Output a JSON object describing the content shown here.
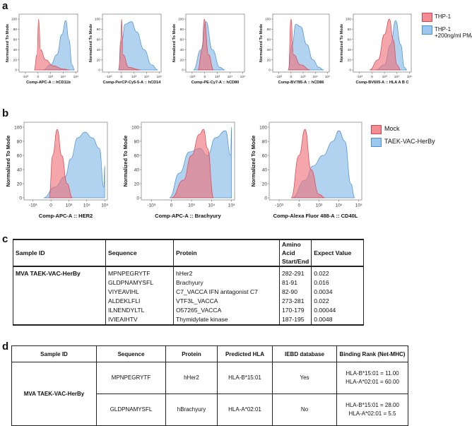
{
  "panels": {
    "a": "a",
    "b": "b",
    "c": "c",
    "d": "d"
  },
  "colors": {
    "red_fill": "#ee6f78",
    "red_stroke": "#d9434f",
    "blue_fill": "#7eb5e6",
    "blue_stroke": "#4b90d2"
  },
  "legend_a": {
    "items": [
      "THP-1",
      "THP-1",
      "+200ng/ml PMA"
    ]
  },
  "legend_b": {
    "items": [
      "Mock",
      "TAEK-VAC-HerBy"
    ]
  },
  "chart_data": [
    {
      "type": "area",
      "panel": "a",
      "title": "",
      "xlabel": "Comp-APC-A :: hCD11b",
      "ylabel": "Normalized To Mode",
      "ylim": [
        0,
        100
      ],
      "yticks": [
        "0",
        "20",
        "40",
        "60",
        "80",
        "100"
      ],
      "xticks": [
        "-10³",
        "0",
        "10³",
        "10⁴",
        "10⁵"
      ],
      "x_scale": "biexponential display units (-1=-10³, 0=0, 1=10³, 2=10⁴, 3=10⁵)",
      "series": [
        {
          "name": "THP-1",
          "color": "red",
          "points": [
            [
              -0.3,
              0
            ],
            [
              -0.08,
              30
            ],
            [
              0.05,
              100
            ],
            [
              0.2,
              40
            ],
            [
              0.6,
              20
            ],
            [
              1.2,
              8
            ],
            [
              2,
              2
            ],
            [
              2.5,
              0
            ]
          ]
        },
        {
          "name": "THP-1 +200ng/ml PMA",
          "color": "blue",
          "points": [
            [
              0.4,
              0
            ],
            [
              1,
              10
            ],
            [
              1.5,
              30
            ],
            [
              1.9,
              70
            ],
            [
              2.2,
              97
            ],
            [
              2.45,
              60
            ],
            [
              2.7,
              10
            ],
            [
              2.9,
              0
            ]
          ]
        }
      ]
    },
    {
      "type": "area",
      "panel": "a",
      "xlabel": "Comp-PerCP-Cy5-5-A :: hCD14",
      "ylabel": "Normalized To Mode",
      "ylim": [
        0,
        100
      ],
      "yticks": [
        "0",
        "20",
        "40",
        "60",
        "80",
        "100"
      ],
      "xticks": [
        "-10³",
        "0",
        "10³",
        "10⁴",
        "10⁵"
      ],
      "series": [
        {
          "name": "THP-1",
          "color": "red",
          "points": [
            [
              -0.2,
              0
            ],
            [
              -0.05,
              60
            ],
            [
              0.02,
              100
            ],
            [
              0.12,
              30
            ],
            [
              0.6,
              5
            ],
            [
              1.5,
              0
            ]
          ]
        },
        {
          "name": "THP-1 +200ng/ml PMA",
          "color": "blue",
          "points": [
            [
              -0.25,
              0
            ],
            [
              0.05,
              60
            ],
            [
              0.3,
              90
            ],
            [
              0.8,
              95
            ],
            [
              1.2,
              75
            ],
            [
              1.8,
              40
            ],
            [
              2.4,
              10
            ],
            [
              2.9,
              0
            ]
          ]
        }
      ]
    },
    {
      "type": "area",
      "panel": "a",
      "xlabel": "Comp-PE-Cy7-A :: hCD80",
      "ylabel": "Normalized To Mode",
      "ylim": [
        0,
        100
      ],
      "yticks": [
        "0",
        "20",
        "40",
        "60",
        "80",
        "100"
      ],
      "xticks": [
        "-10³",
        "0",
        "10³",
        "10⁴",
        "10⁵"
      ],
      "series": [
        {
          "name": "THP-1",
          "color": "red",
          "points": [
            [
              -0.55,
              0
            ],
            [
              -0.2,
              40
            ],
            [
              -0.05,
              100
            ],
            [
              0.3,
              30
            ],
            [
              0.7,
              0
            ]
          ]
        },
        {
          "name": "THP-1 +200ng/ml PMA",
          "color": "blue",
          "points": [
            [
              -0.9,
              0
            ],
            [
              -0.3,
              40
            ],
            [
              0.1,
              95
            ],
            [
              0.6,
              40
            ],
            [
              1.2,
              5
            ],
            [
              1.6,
              0
            ]
          ]
        }
      ]
    },
    {
      "type": "area",
      "panel": "a",
      "xlabel": "Comp-BV785-A :: hCD86",
      "ylabel": "Normalized To Mode",
      "ylim": [
        0,
        100
      ],
      "yticks": [
        "0",
        "20",
        "40",
        "60",
        "80",
        "100"
      ],
      "xticks": [
        "-10³",
        "0",
        "10³",
        "10⁴",
        "10⁵"
      ],
      "series": [
        {
          "name": "THP-1",
          "color": "red",
          "points": [
            [
              -0.2,
              0
            ],
            [
              0,
              100
            ],
            [
              0.2,
              30
            ],
            [
              0.8,
              10
            ],
            [
              1.6,
              0
            ]
          ]
        },
        {
          "name": "THP-1 +200ng/ml PMA",
          "color": "blue",
          "points": [
            [
              -0.25,
              0
            ],
            [
              0.1,
              50
            ],
            [
              0.4,
              90
            ],
            [
              0.8,
              85
            ],
            [
              1.3,
              50
            ],
            [
              1.8,
              20
            ],
            [
              2.3,
              5
            ],
            [
              2.7,
              0
            ]
          ]
        }
      ]
    },
    {
      "type": "area",
      "panel": "a",
      "xlabel": "Comp-BV605-A :: HLA A B C",
      "ylabel": "Normalized To Mode",
      "ylim": [
        0,
        100
      ],
      "yticks": [
        "0",
        "20",
        "40",
        "60",
        "80",
        "100"
      ],
      "xticks": [
        "-10³",
        "0",
        "10³",
        "10⁴",
        "10⁵"
      ],
      "series": [
        {
          "name": "THP-1",
          "color": "red",
          "points": [
            [
              -0.2,
              0
            ],
            [
              0.5,
              20
            ],
            [
              1.0,
              70
            ],
            [
              1.4,
              100
            ],
            [
              1.7,
              60
            ],
            [
              2.0,
              10
            ],
            [
              2.3,
              0
            ]
          ]
        },
        {
          "name": "THP-1 +200ng/ml PMA",
          "color": "blue",
          "points": [
            [
              0.3,
              0
            ],
            [
              1,
              10
            ],
            [
              1.5,
              50
            ],
            [
              1.9,
              97
            ],
            [
              2.3,
              50
            ],
            [
              2.6,
              5
            ],
            [
              2.8,
              0
            ]
          ]
        }
      ]
    },
    {
      "type": "area",
      "panel": "b",
      "xlabel": "Comp-APC-A :: HER2",
      "ylabel": "Normalized To Mode",
      "ylim": [
        0,
        100
      ],
      "yticks": [
        "0",
        "20",
        "40",
        "60",
        "80",
        "100"
      ],
      "xticks": [
        "-10³",
        "0",
        "10³",
        "10⁴",
        "10⁵"
      ],
      "series": [
        {
          "name": "Mock",
          "color": "red",
          "points": [
            [
              -0.1,
              0
            ],
            [
              0.1,
              60
            ],
            [
              0.35,
              97
            ],
            [
              0.6,
              60
            ],
            [
              0.9,
              20
            ],
            [
              1.2,
              0
            ]
          ]
        },
        {
          "name": "TAEK-VAC-HerBy",
          "color": "blue",
          "points": [
            [
              -0.4,
              0
            ],
            [
              0.2,
              15
            ],
            [
              0.8,
              30
            ],
            [
              1.1,
              55
            ],
            [
              1.5,
              85
            ],
            [
              1.9,
              93
            ],
            [
              2.3,
              85
            ],
            [
              2.7,
              70
            ],
            [
              2.95,
              15
            ],
            [
              3.0,
              45
            ],
            [
              3.0,
              0
            ]
          ]
        }
      ]
    },
    {
      "type": "area",
      "panel": "b",
      "xlabel": "Comp-APC-A :: Brachyury",
      "ylabel": "Normalized To Mode",
      "ylim": [
        0,
        100
      ],
      "yticks": [
        "0",
        "20",
        "40",
        "60",
        "80",
        "100"
      ],
      "xticks": [
        "-10³",
        "0",
        "10³",
        "10⁴",
        "10⁵"
      ],
      "series": [
        {
          "name": "Mock",
          "color": "red",
          "points": [
            [
              0,
              0
            ],
            [
              0.6,
              25
            ],
            [
              1.0,
              60
            ],
            [
              1.4,
              90
            ],
            [
              1.6,
              97
            ],
            [
              1.8,
              70
            ],
            [
              2.1,
              0
            ]
          ]
        },
        {
          "name": "TAEK-VAC-HerBy",
          "color": "blue",
          "points": [
            [
              -0.1,
              0
            ],
            [
              0.4,
              35
            ],
            [
              0.9,
              65
            ],
            [
              1.4,
              70
            ],
            [
              1.8,
              60
            ],
            [
              2.2,
              85
            ],
            [
              2.7,
              95
            ],
            [
              2.95,
              60
            ],
            [
              3.0,
              100
            ],
            [
              3.0,
              0
            ]
          ]
        }
      ]
    },
    {
      "type": "area",
      "panel": "b",
      "xlabel": "Comp-Alexa Fluor 488-A :: CD40L",
      "ylabel": "Normalized To Mode",
      "ylim": [
        0,
        100
      ],
      "yticks": [
        "0",
        "20",
        "40",
        "60",
        "80",
        "100"
      ],
      "xticks": [
        "-10³",
        "0",
        "10³",
        "10⁴",
        "10⁵"
      ],
      "series": [
        {
          "name": "Mock",
          "color": "red",
          "points": [
            [
              -0.4,
              0
            ],
            [
              0,
              60
            ],
            [
              0.3,
              97
            ],
            [
              0.6,
              40
            ],
            [
              1,
              5
            ],
            [
              1.3,
              0
            ]
          ]
        },
        {
          "name": "TAEK-VAC-HerBy",
          "color": "blue",
          "points": [
            [
              -0.35,
              0
            ],
            [
              0.3,
              25
            ],
            [
              0.7,
              45
            ],
            [
              1.2,
              60
            ],
            [
              1.7,
              80
            ],
            [
              2.0,
              95
            ],
            [
              2.3,
              80
            ],
            [
              2.6,
              20
            ],
            [
              2.8,
              0
            ]
          ]
        }
      ]
    }
  ],
  "table_c": {
    "headers": [
      "Sample ID",
      "Sequence",
      "Protein",
      "Amino Acid Start/End",
      "Expect Value"
    ],
    "sample_id": "MVA TAEK-VAC-HerBy",
    "rows": [
      [
        "MPNPEGRYTF",
        "hHer2",
        "282-291",
        "0.022"
      ],
      [
        "GLDPNAMYSFL",
        "Brachyury",
        "81-91",
        "0.016"
      ],
      [
        "VIYEAVIHL",
        "C7_VACCA IFN antagonist C7",
        "82-90",
        "0.0034"
      ],
      [
        "ALDEKLFLI",
        "VTF3L_VACCA",
        "273-281",
        "0.022"
      ],
      [
        "ILNENDYLTL",
        "O57265_VACCA",
        "170-179",
        "0.00044"
      ],
      [
        "IVIEAIHTV",
        "Thymidylate kinase",
        "187-195",
        "0.0048"
      ]
    ]
  },
  "table_d": {
    "headers": [
      "Sample ID",
      "Sequence",
      "Protein",
      "Predicted HLA",
      "IEBD database",
      "Binding Rank (Net-MHC)"
    ],
    "sample_id": "MVA TAEK-VAC-HerBy",
    "rows": [
      {
        "sequence": "MPNPEGRYTF",
        "protein": "hHer2",
        "hla": "HLA-B*15:01",
        "iebd": "Yes",
        "rank": [
          "HLA-B*15:01 = 11.00",
          "HLA-A*02:01 = 60.00"
        ]
      },
      {
        "sequence": "GLDPNAMYSFL",
        "protein": "hBrachyury",
        "hla": "HLA-A*02:01",
        "iebd": "No",
        "rank": [
          "HLA-B*15:01 = 28.00",
          "HLA-A*02:01 = 5.5"
        ]
      }
    ]
  }
}
